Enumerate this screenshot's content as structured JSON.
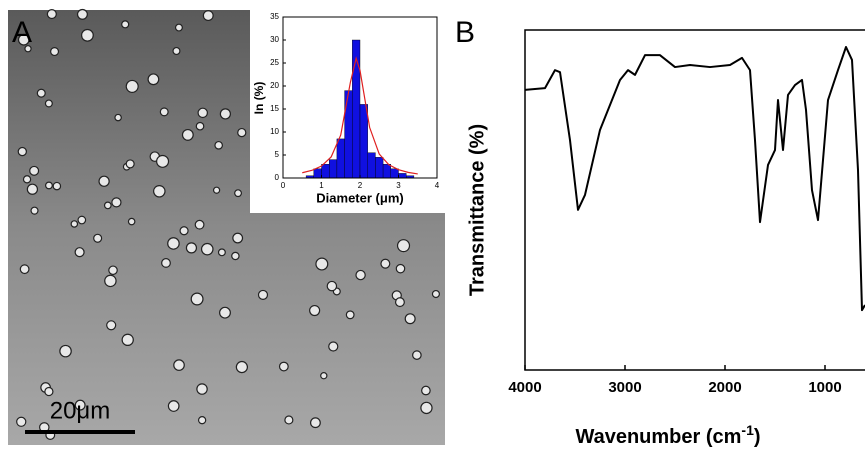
{
  "chart_data": [
    {
      "type": "histogram",
      "panel": "A",
      "scale_bar": "20μm",
      "x_label": "Diameter (μm)",
      "y_label": "In (%)",
      "bins": [
        0.6,
        0.8,
        1.0,
        1.2,
        1.4,
        1.6,
        1.8,
        2.0,
        2.2,
        2.4,
        2.6,
        2.8,
        3.0,
        3.2,
        3.4
      ],
      "values": [
        0.5,
        2,
        3,
        4,
        8.5,
        19,
        30,
        16,
        5.5,
        4.5,
        3,
        2,
        1,
        0.5
      ],
      "color": "#1010e0",
      "fit": {
        "color": "#e02020",
        "x": [
          0.5,
          0.75,
          1.0,
          1.25,
          1.5,
          1.75,
          1.9,
          2.0,
          2.25,
          2.5,
          2.75,
          3.0,
          3.25,
          3.5
        ],
        "values": [
          1.14,
          1.66,
          2.6,
          4.57,
          9.36,
          20.8,
          26,
          23.4,
          11.0,
          5.2,
          2.88,
          1.8,
          1.22,
          0.88
        ]
      },
      "xlim": [
        0,
        4
      ],
      "xticks": [
        0,
        1,
        2,
        3,
        4
      ],
      "ylim": [
        0,
        35
      ],
      "yticks": [
        0,
        5,
        10,
        15,
        20,
        25,
        30,
        35
      ]
    },
    {
      "type": "line",
      "panel": "B",
      "x_label": "Wavenumber (cm",
      "x_label_sup": "-1",
      "x_label_end": ")",
      "y_label": "Transmittance (%)",
      "x": [
        4000,
        3800,
        3700,
        3650,
        3550,
        3470,
        3400,
        3250,
        3050,
        2970,
        2900,
        2800,
        2650,
        2500,
        2350,
        2150,
        1950,
        1830,
        1750,
        1700,
        1650,
        1570,
        1500,
        1470,
        1420,
        1370,
        1300,
        1230,
        1190,
        1130,
        1070,
        970,
        870,
        790,
        730,
        670,
        630,
        600
      ],
      "values": [
        82.4,
        82.9,
        88.2,
        87.6,
        67.6,
        47.1,
        51.5,
        70.6,
        85.3,
        88.2,
        86.8,
        92.6,
        92.6,
        89.1,
        89.7,
        89.1,
        89.7,
        91.8,
        88.2,
        67.6,
        43.5,
        60.3,
        64.7,
        79.4,
        64.7,
        80.9,
        83.8,
        85.3,
        76.5,
        52.9,
        44.1,
        79.4,
        88.2,
        95,
        91.2,
        58.8,
        17.6,
        19.1
      ],
      "color": "#000000",
      "xlim": [
        4000,
        600
      ],
      "xticks": [
        4000,
        3000,
        2000,
        1000
      ],
      "ylim": [
        0,
        100
      ]
    }
  ]
}
